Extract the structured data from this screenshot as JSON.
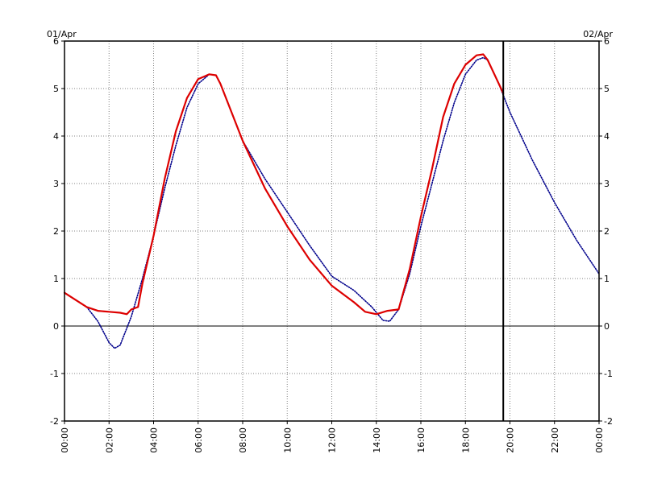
{
  "chart_data": {
    "type": "line",
    "title": "",
    "xlabel": "",
    "ylabel": "",
    "date_left": "01/Apr",
    "date_right": "02/Apr",
    "x_unit": "hours",
    "xlim": [
      0,
      24
    ],
    "ylim": [
      -2,
      6
    ],
    "yticks": [
      "-2",
      "-1",
      "0",
      "1",
      "2",
      "3",
      "4",
      "5",
      "6"
    ],
    "xtick_labels": [
      "00:00",
      "02:00",
      "04:00",
      "06:00",
      "08:00",
      "10:00",
      "12:00",
      "14:00",
      "16:00",
      "18:00",
      "20:00",
      "22:00",
      "00:00"
    ],
    "xtick_hours": [
      0,
      2,
      4,
      6,
      8,
      10,
      12,
      14,
      16,
      18,
      20,
      22,
      24
    ],
    "grid": true,
    "zero_line": true,
    "now_marker_hour": 19.7,
    "series": [
      {
        "color": "#00008b",
        "style": "dotted",
        "x": [
          0.0,
          0.5,
          1.0,
          1.5,
          2.0,
          2.25,
          2.5,
          3.0,
          3.5,
          4.0,
          4.5,
          5.0,
          5.5,
          6.0,
          6.5,
          6.8,
          7.0,
          7.5,
          8.0,
          9.0,
          10.0,
          11.0,
          12.0,
          13.0,
          13.8,
          14.3,
          14.6,
          15.0,
          15.5,
          16.0,
          16.5,
          17.0,
          17.5,
          18.0,
          18.5,
          18.8,
          19.0,
          19.5,
          20.0,
          20.5,
          21.0,
          22.0,
          23.0,
          24.0
        ],
        "y": [
          0.7,
          0.55,
          0.4,
          0.1,
          -0.35,
          -0.47,
          -0.4,
          0.2,
          1.0,
          1.9,
          2.9,
          3.8,
          4.6,
          5.1,
          5.3,
          5.28,
          5.1,
          4.5,
          3.9,
          3.1,
          2.4,
          1.7,
          1.05,
          0.75,
          0.4,
          0.12,
          0.1,
          0.35,
          1.1,
          2.1,
          3.0,
          3.9,
          4.7,
          5.3,
          5.6,
          5.65,
          5.6,
          5.1,
          4.5,
          4.0,
          3.5,
          2.6,
          1.8,
          1.1
        ]
      },
      {
        "color": "#dd0000",
        "style": "solid",
        "x": [
          0.0,
          0.5,
          1.0,
          1.5,
          2.0,
          2.5,
          2.8,
          3.0,
          3.3,
          3.5,
          4.0,
          4.5,
          5.0,
          5.5,
          6.0,
          6.5,
          6.8,
          7.0,
          7.5,
          8.0,
          9.0,
          10.0,
          11.0,
          12.0,
          13.0,
          13.5,
          14.0,
          14.5,
          15.0,
          15.5,
          16.0,
          16.5,
          17.0,
          17.5,
          18.0,
          18.5,
          18.8,
          19.0,
          19.3,
          19.7
        ],
        "y": [
          0.7,
          0.55,
          0.4,
          0.32,
          0.3,
          0.28,
          0.25,
          0.35,
          0.4,
          0.9,
          1.9,
          3.1,
          4.1,
          4.8,
          5.2,
          5.3,
          5.28,
          5.1,
          4.5,
          3.9,
          2.9,
          2.1,
          1.4,
          0.85,
          0.5,
          0.3,
          0.25,
          0.32,
          0.35,
          1.2,
          2.3,
          3.3,
          4.4,
          5.1,
          5.5,
          5.7,
          5.72,
          5.6,
          5.3,
          4.9
        ]
      }
    ]
  }
}
